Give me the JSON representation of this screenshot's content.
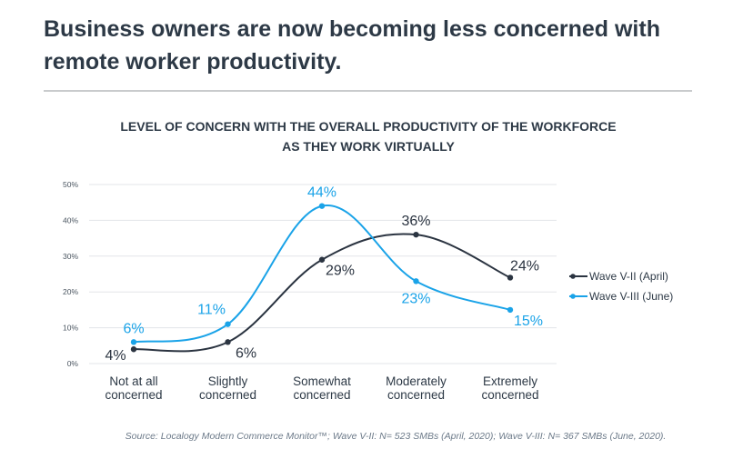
{
  "headline": "Business owners are now becoming less concerned with remote worker productivity.",
  "source": "Source: Localogy Modern Commerce Monitor™; Wave V-II: N= 523 SMBs (April, 2020); Wave V-III: N= 367 SMBs (June, 2020).",
  "chart_data": {
    "type": "line",
    "title": [
      "LEVEL OF CONCERN  WITH THE OVERALL PRODUCTIVITY OF THE WORKFORCE",
      "AS THEY WORK VIRTUALLY"
    ],
    "categories": [
      [
        "Not at all",
        "concerned"
      ],
      [
        "Slightly",
        "concerned"
      ],
      [
        "Somewhat",
        "concerned"
      ],
      [
        "Moderately",
        "concerned"
      ],
      [
        "Extremely",
        "concerned"
      ]
    ],
    "ylim": [
      0,
      50
    ],
    "yticks": [
      0,
      10,
      20,
      30,
      40,
      50
    ],
    "ytick_labels": [
      "0%",
      "10%",
      "20%",
      "30%",
      "40%",
      "50%"
    ],
    "grid": true,
    "smooth": true,
    "legend_position": "right",
    "series": [
      {
        "name": "Wave V-II (April)",
        "color": "#2b3441",
        "values": [
          4,
          6,
          29,
          36,
          24
        ],
        "labels": [
          "4%",
          "6%",
          "29%",
          "36%",
          "24%"
        ],
        "label_side": [
          "below-left",
          "below-right",
          "below-right",
          "above",
          "above-right"
        ]
      },
      {
        "name": "Wave V-III (June)",
        "color": "#1aa3e8",
        "values": [
          6,
          11,
          44,
          23,
          15
        ],
        "labels": [
          "6%",
          "11%",
          "44%",
          "23%",
          "15%"
        ],
        "label_side": [
          "above",
          "above-left",
          "above",
          "below",
          "below-right"
        ]
      }
    ]
  }
}
